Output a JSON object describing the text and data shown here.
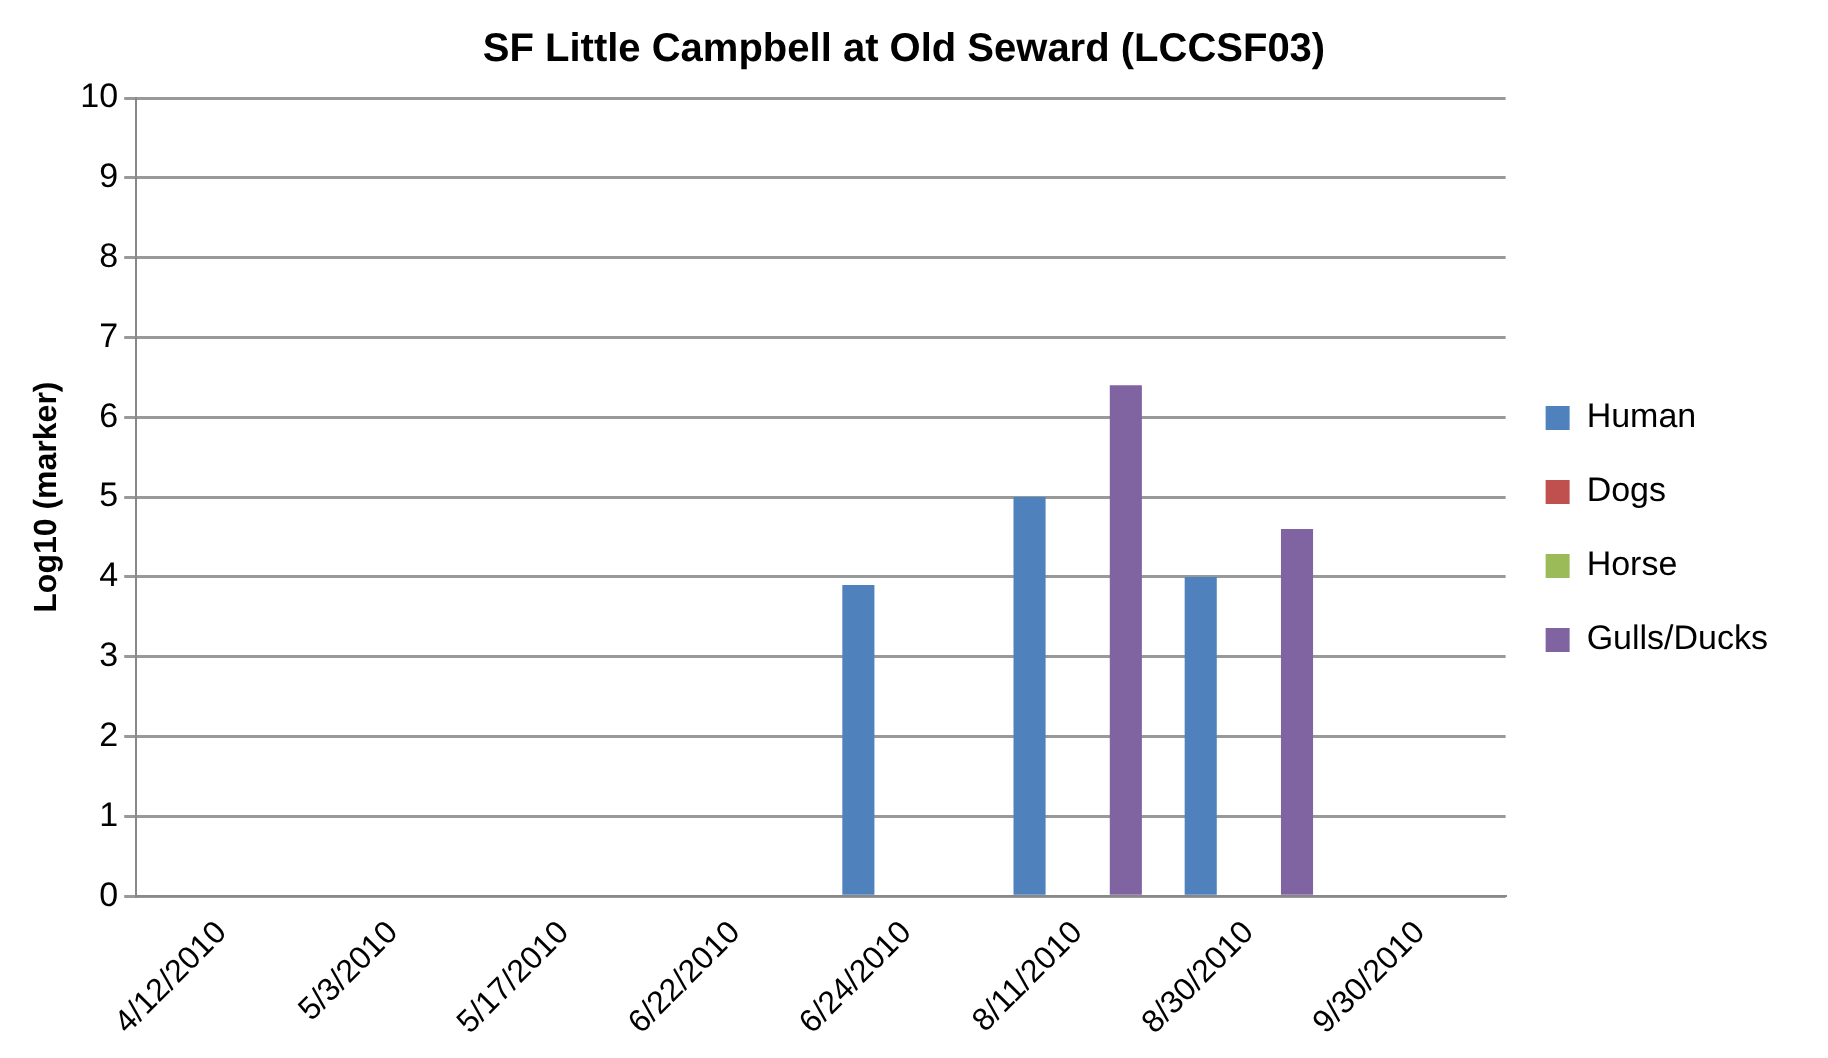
{
  "chart_data": {
    "type": "bar",
    "title": "SF Little Campbell at Old Seward (LCCSF03)",
    "ylabel": "Log10 (marker)",
    "categories": [
      "4/12/2010",
      "5/3/2010",
      "5/17/2010",
      "6/22/2010",
      "6/24/2010",
      "8/11/2010",
      "8/30/2010",
      "9/30/2010"
    ],
    "series": [
      {
        "name": "Human",
        "color": "#4f81bd",
        "values": [
          null,
          null,
          null,
          null,
          3.9,
          5.0,
          4.0,
          null
        ]
      },
      {
        "name": "Dogs",
        "color": "#c0504d",
        "values": [
          null,
          null,
          null,
          null,
          null,
          null,
          null,
          null
        ]
      },
      {
        "name": "Horse",
        "color": "#9bbb59",
        "values": [
          null,
          null,
          null,
          null,
          null,
          null,
          null,
          null
        ]
      },
      {
        "name": "Gulls/Ducks",
        "color": "#8064a2",
        "values": [
          null,
          null,
          null,
          null,
          null,
          6.4,
          4.6,
          null
        ]
      }
    ],
    "ylim": [
      0,
      10
    ],
    "yticks": [
      0,
      1,
      2,
      3,
      4,
      5,
      6,
      7,
      8,
      9,
      10
    ],
    "grid": "y",
    "legend": "right"
  }
}
